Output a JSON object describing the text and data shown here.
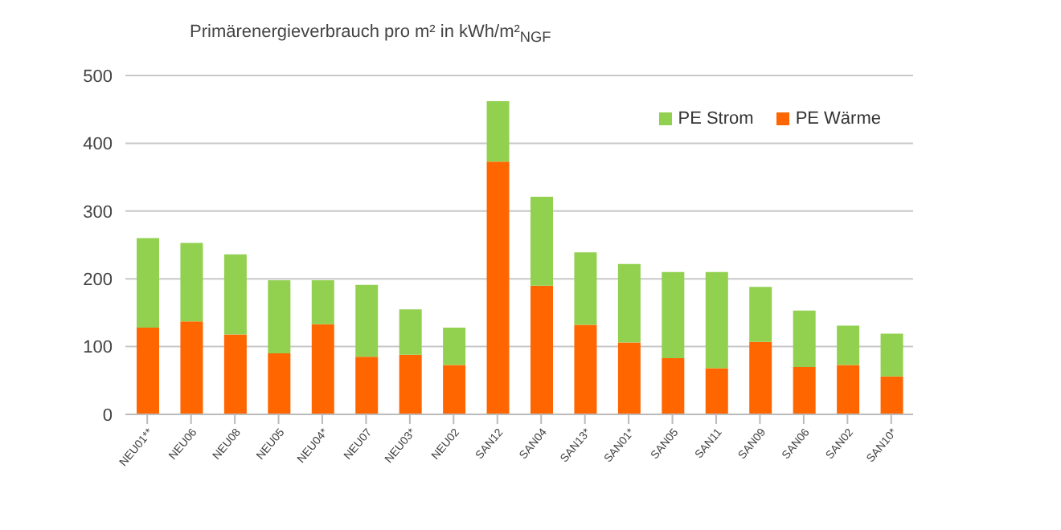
{
  "chart_data": {
    "type": "bar",
    "title": "Primärenergieverbrauch pro m² in kWh/m²$_{NGF}$",
    "categories": [
      "NEU01**",
      "NEU06",
      "NEU08",
      "NEU05",
      "NEU04*",
      "NEU07",
      "NEU03*",
      "NEU02",
      "SAN12",
      "SAN04",
      "SAN13*",
      "SAN01*",
      "SAN05",
      "SAN11",
      "SAN09",
      "SAN06",
      "SAN02",
      "SAN10*"
    ],
    "stacked": true,
    "series": [
      {
        "name": "PE Wärme",
        "color": "#ff6600",
        "values": [
          128,
          137,
          118,
          90,
          133,
          85,
          88,
          73,
          373,
          190,
          132,
          106,
          83,
          68,
          107,
          70,
          73,
          56
        ]
      },
      {
        "name": "PE Strom",
        "color": "#92d050",
        "values": [
          132,
          116,
          118,
          108,
          65,
          106,
          67,
          55,
          89,
          131,
          107,
          116,
          127,
          142,
          81,
          83,
          58,
          63
        ]
      }
    ],
    "ylim": [
      0,
      500
    ],
    "yticks": [
      0,
      100,
      200,
      300,
      400,
      500
    ],
    "grid": "y",
    "legend": "top right"
  }
}
